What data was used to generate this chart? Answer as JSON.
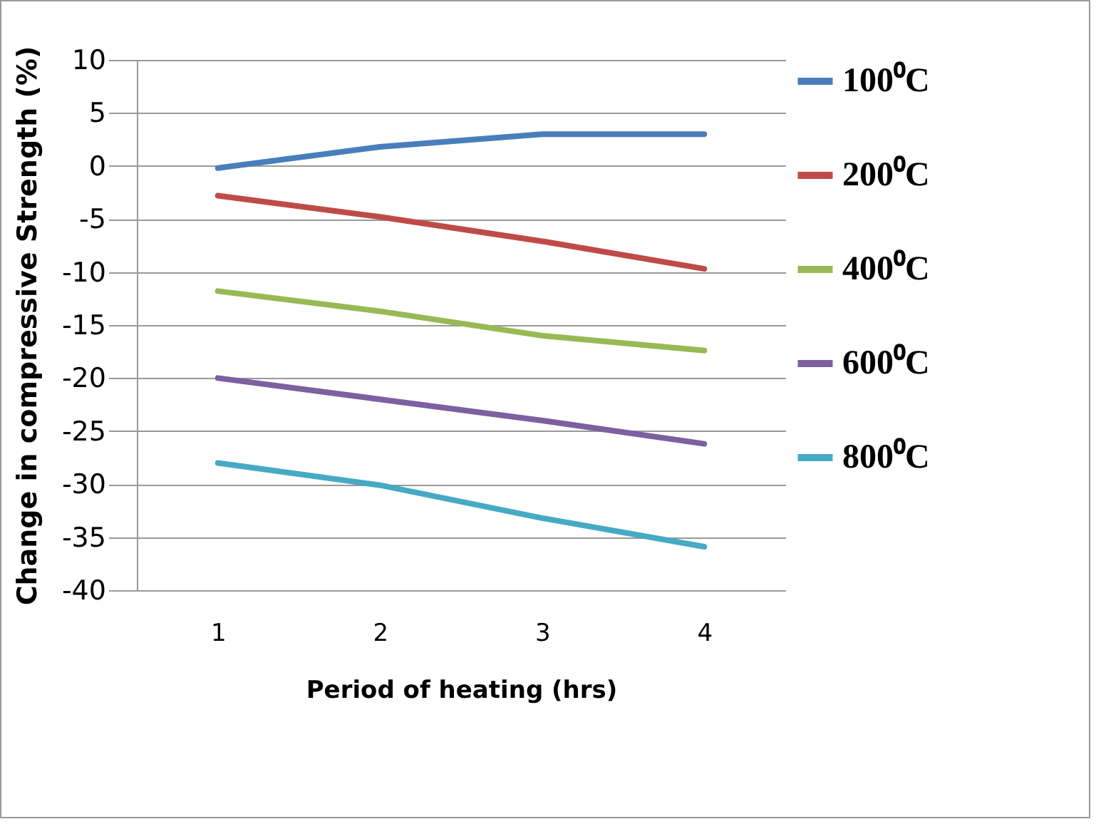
{
  "chart_data": {
    "type": "line",
    "xlabel": "Period of heating (hrs)",
    "ylabel": "Change in compressive Strength (%)",
    "categories": [
      "1",
      "2",
      "3",
      "4"
    ],
    "series": [
      {
        "name": "100⁰C",
        "color": "#4a7ebb",
        "values": [
          -0.2,
          1.8,
          3,
          3
        ]
      },
      {
        "name": "200⁰C",
        "color": "#be4b48",
        "values": [
          -2.8,
          -4.8,
          -7.1,
          -9.7
        ]
      },
      {
        "name": "400⁰C",
        "color": "#98b954",
        "values": [
          -11.8,
          -13.7,
          -16,
          -17.4
        ]
      },
      {
        "name": "600⁰C",
        "color": "#7d60a0",
        "values": [
          -20,
          -22,
          -24,
          -26.2
        ]
      },
      {
        "name": "800⁰C",
        "color": "#46aac5",
        "values": [
          -28,
          -30.1,
          -33.2,
          -35.9
        ]
      }
    ],
    "ylim": [
      -40,
      10
    ],
    "yticks": [
      -40,
      -35,
      -30,
      -25,
      -20,
      -15,
      -10,
      -5,
      0,
      5,
      10
    ],
    "grid": "y",
    "legend": "right",
    "marker": "none",
    "line_style": "solid"
  }
}
